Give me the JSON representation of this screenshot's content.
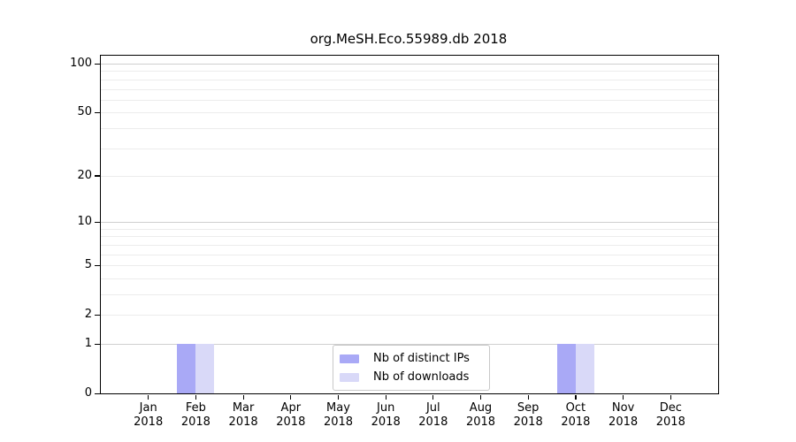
{
  "chart_data": {
    "type": "bar",
    "title": "org.MeSH.Eco.55989.db 2018",
    "x_categories": [
      "Jan",
      "Feb",
      "Mar",
      "Apr",
      "May",
      "Jun",
      "Jul",
      "Aug",
      "Sep",
      "Oct",
      "Nov",
      "Dec"
    ],
    "x_year_label": "2018",
    "series": [
      {
        "name": "Nb of distinct IPs",
        "color": "#a9a9f6",
        "values": [
          0,
          1,
          0,
          0,
          0,
          0,
          0,
          0,
          0,
          1,
          0,
          0
        ]
      },
      {
        "name": "Nb of downloads",
        "color": "#d9d9f8",
        "values": [
          0,
          1,
          0,
          0,
          0,
          0,
          0,
          0,
          0,
          1,
          0,
          0
        ]
      }
    ],
    "y_axis": {
      "scale": "log1p",
      "tick_values": [
        0,
        1,
        2,
        5,
        10,
        20,
        50,
        100
      ],
      "minor_gridline_values": [
        3,
        4,
        6,
        7,
        8,
        9,
        30,
        40,
        60,
        70,
        80,
        90
      ],
      "decade_gridline_values": [
        1,
        10,
        100
      ],
      "ylim": [
        0,
        112
      ]
    },
    "legend": {
      "position": "bottom-center-inside"
    },
    "grid": "horizontal",
    "colors": {
      "axis": "#000000",
      "grid_minor": "#ececec",
      "grid_decade": "#cfcfcf",
      "background": "#ffffff"
    }
  }
}
